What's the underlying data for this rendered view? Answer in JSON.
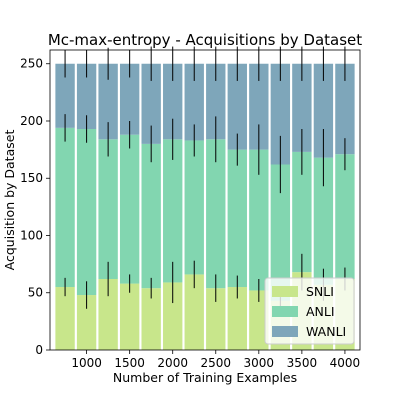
{
  "chart_data": {
    "type": "bar",
    "stacked": true,
    "title": "Mc-max-entropy - Acquisitions by Dataset",
    "xlabel": "Number of Training Examples",
    "ylabel": "Acquisition by Dataset",
    "x": [
      750,
      1000,
      1250,
      1500,
      1750,
      2000,
      2250,
      2500,
      2750,
      3000,
      3250,
      3500,
      3750,
      4000
    ],
    "xticks": [
      1000,
      1500,
      2000,
      2500,
      3000,
      3500,
      4000
    ],
    "xlim": [
      575,
      4175
    ],
    "yticks": [
      0,
      50,
      100,
      150,
      200,
      250
    ],
    "ylim": [
      0,
      262
    ],
    "grid": false,
    "legend_position": "lower-right",
    "series": [
      {
        "name": "SNLI",
        "color": "#c8e68b",
        "values": [
          55,
          48,
          62,
          58,
          54,
          59,
          66,
          54,
          55,
          52,
          43,
          68,
          57,
          62
        ],
        "error": [
          8,
          12,
          15,
          8,
          9,
          18,
          12,
          12,
          10,
          10,
          12,
          16,
          14,
          10
        ]
      },
      {
        "name": "ANLI",
        "color": "#82d6b0",
        "values": [
          139,
          145,
          122,
          130,
          126,
          125,
          117,
          130,
          120,
          123,
          119,
          105,
          111,
          109
        ],
        "error": [
          12,
          12,
          15,
          12,
          16,
          18,
          14,
          20,
          14,
          22,
          25,
          20,
          25,
          14
        ]
      },
      {
        "name": "WANLI",
        "color": "#7ea6ba",
        "values": [
          56,
          57,
          66,
          62,
          70,
          66,
          67,
          66,
          75,
          75,
          88,
          77,
          82,
          79
        ],
        "error": [
          12,
          12,
          14,
          12,
          15,
          15,
          15,
          15,
          15,
          15,
          15,
          15,
          15,
          15
        ]
      }
    ]
  }
}
